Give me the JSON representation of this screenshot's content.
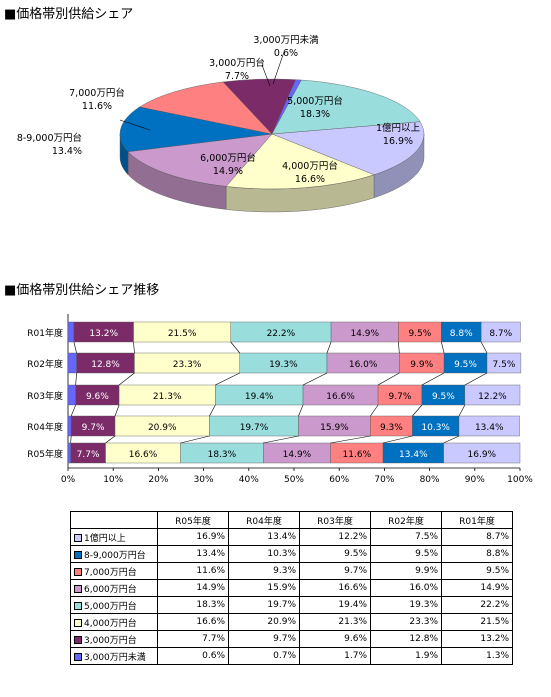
{
  "section1_title": "■価格帯別供給シェア",
  "section2_title": "■価格帯別供給シェア推移",
  "chart_data": [
    {
      "type": "pie",
      "title": "価格帯別供給シェア",
      "categories": [
        "1億円以上",
        "4,000万円台",
        "6,000万円台",
        "8-9,000万円台",
        "7,000万円台",
        "3,000万円台",
        "3,000万円未満",
        "5,000万円台"
      ],
      "values": [
        16.9,
        16.6,
        14.9,
        13.4,
        11.6,
        7.7,
        0.6,
        18.3
      ],
      "labels": [
        "16.9%",
        "16.6%",
        "14.9%",
        "13.4%",
        "11.6%",
        "7.7%",
        "0.6%",
        "18.3%"
      ],
      "colors": [
        "#c9c9ff",
        "#ffffcc",
        "#cc99cc",
        "#0070c0",
        "#ff8080",
        "#7b2c68",
        "#6666ff",
        "#99dddd"
      ]
    },
    {
      "type": "bar",
      "stacked": true,
      "orientation": "horizontal",
      "title": "価格帯別供給シェア推移",
      "categories": [
        "R01年度",
        "R02年度",
        "R03年度",
        "R04年度",
        "R05年度"
      ],
      "series": [
        {
          "name": "3,000万円未満",
          "color": "#6666ff",
          "values": [
            1.3,
            1.9,
            1.7,
            0.7,
            0.6
          ]
        },
        {
          "name": "3,000万円台",
          "color": "#7b2c68",
          "values": [
            13.2,
            12.8,
            9.6,
            9.7,
            7.7
          ]
        },
        {
          "name": "4,000万円台",
          "color": "#ffffcc",
          "values": [
            21.5,
            23.3,
            21.3,
            20.9,
            16.6
          ]
        },
        {
          "name": "5,000万円台",
          "color": "#99dddd",
          "values": [
            22.2,
            19.3,
            19.4,
            19.7,
            18.3
          ]
        },
        {
          "name": "6,000万円台",
          "color": "#cc99cc",
          "values": [
            14.9,
            16.0,
            16.6,
            15.9,
            14.9
          ]
        },
        {
          "name": "7,000万円台",
          "color": "#ff8080",
          "values": [
            9.5,
            9.9,
            9.7,
            9.3,
            11.6
          ]
        },
        {
          "name": "8-9,000万円台",
          "color": "#0070c0",
          "values": [
            8.8,
            9.5,
            9.5,
            10.3,
            13.4
          ]
        },
        {
          "name": "1億円以上",
          "color": "#c9c9ff",
          "values": [
            8.7,
            7.5,
            12.2,
            13.4,
            16.9
          ]
        }
      ],
      "x_ticks": [
        "0%",
        "10%",
        "20%",
        "30%",
        "40%",
        "50%",
        "60%",
        "70%",
        "80%",
        "90%",
        "100%"
      ],
      "xlim": [
        0,
        100
      ],
      "grid": false
    }
  ],
  "table": {
    "headers": [
      "R05年度",
      "R04年度",
      "R03年度",
      "R02年度",
      "R01年度"
    ],
    "rows": [
      {
        "label": "1億円以上",
        "color": "#c9c9ff",
        "cells": [
          "16.9%",
          "13.4%",
          "12.2%",
          "7.5%",
          "8.7%"
        ]
      },
      {
        "label": "8-9,000万円台",
        "color": "#0070c0",
        "cells": [
          "13.4%",
          "10.3%",
          "9.5%",
          "9.5%",
          "8.8%"
        ]
      },
      {
        "label": "7,000万円台",
        "color": "#ff8080",
        "cells": [
          "11.6%",
          "9.3%",
          "9.7%",
          "9.9%",
          "9.5%"
        ]
      },
      {
        "label": "6,000万円台",
        "color": "#cc99cc",
        "cells": [
          "14.9%",
          "15.9%",
          "16.6%",
          "16.0%",
          "14.9%"
        ]
      },
      {
        "label": "5,000万円台",
        "color": "#99dddd",
        "cells": [
          "18.3%",
          "19.7%",
          "19.4%",
          "19.3%",
          "22.2%"
        ]
      },
      {
        "label": "4,000万円台",
        "color": "#ffffcc",
        "cells": [
          "16.6%",
          "20.9%",
          "21.3%",
          "23.3%",
          "21.5%"
        ]
      },
      {
        "label": "3,000万円台",
        "color": "#7b2c68",
        "cells": [
          "7.7%",
          "9.7%",
          "9.6%",
          "12.8%",
          "13.2%"
        ]
      },
      {
        "label": "3,000万円未満",
        "color": "#6666ff",
        "cells": [
          "0.6%",
          "0.7%",
          "1.7%",
          "1.9%",
          "1.3%"
        ]
      }
    ]
  }
}
